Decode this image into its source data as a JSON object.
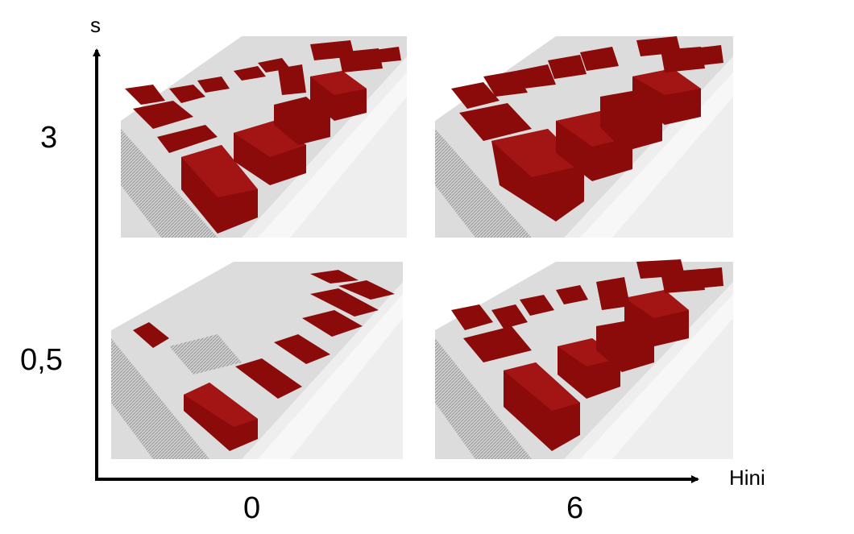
{
  "axes": {
    "y_label": "s",
    "x_label": "Hini",
    "y_ticks": [
      "3",
      "0,5"
    ],
    "x_ticks": [
      "0",
      "6"
    ]
  },
  "panels": [
    {
      "s": "3",
      "hini": "0",
      "content": "3d-city-block-render"
    },
    {
      "s": "3",
      "hini": "6",
      "content": "3d-city-block-render"
    },
    {
      "s": "0,5",
      "hini": "0",
      "content": "3d-city-block-render"
    },
    {
      "s": "0,5",
      "hini": "6",
      "content": "3d-city-block-render"
    }
  ],
  "colors": {
    "building": "#8b0a0a",
    "building_side": "#6b0606",
    "building_top": "#a31515",
    "ground": "#d9d9d9",
    "road": "#f2f2f2",
    "axis": "#000000"
  }
}
